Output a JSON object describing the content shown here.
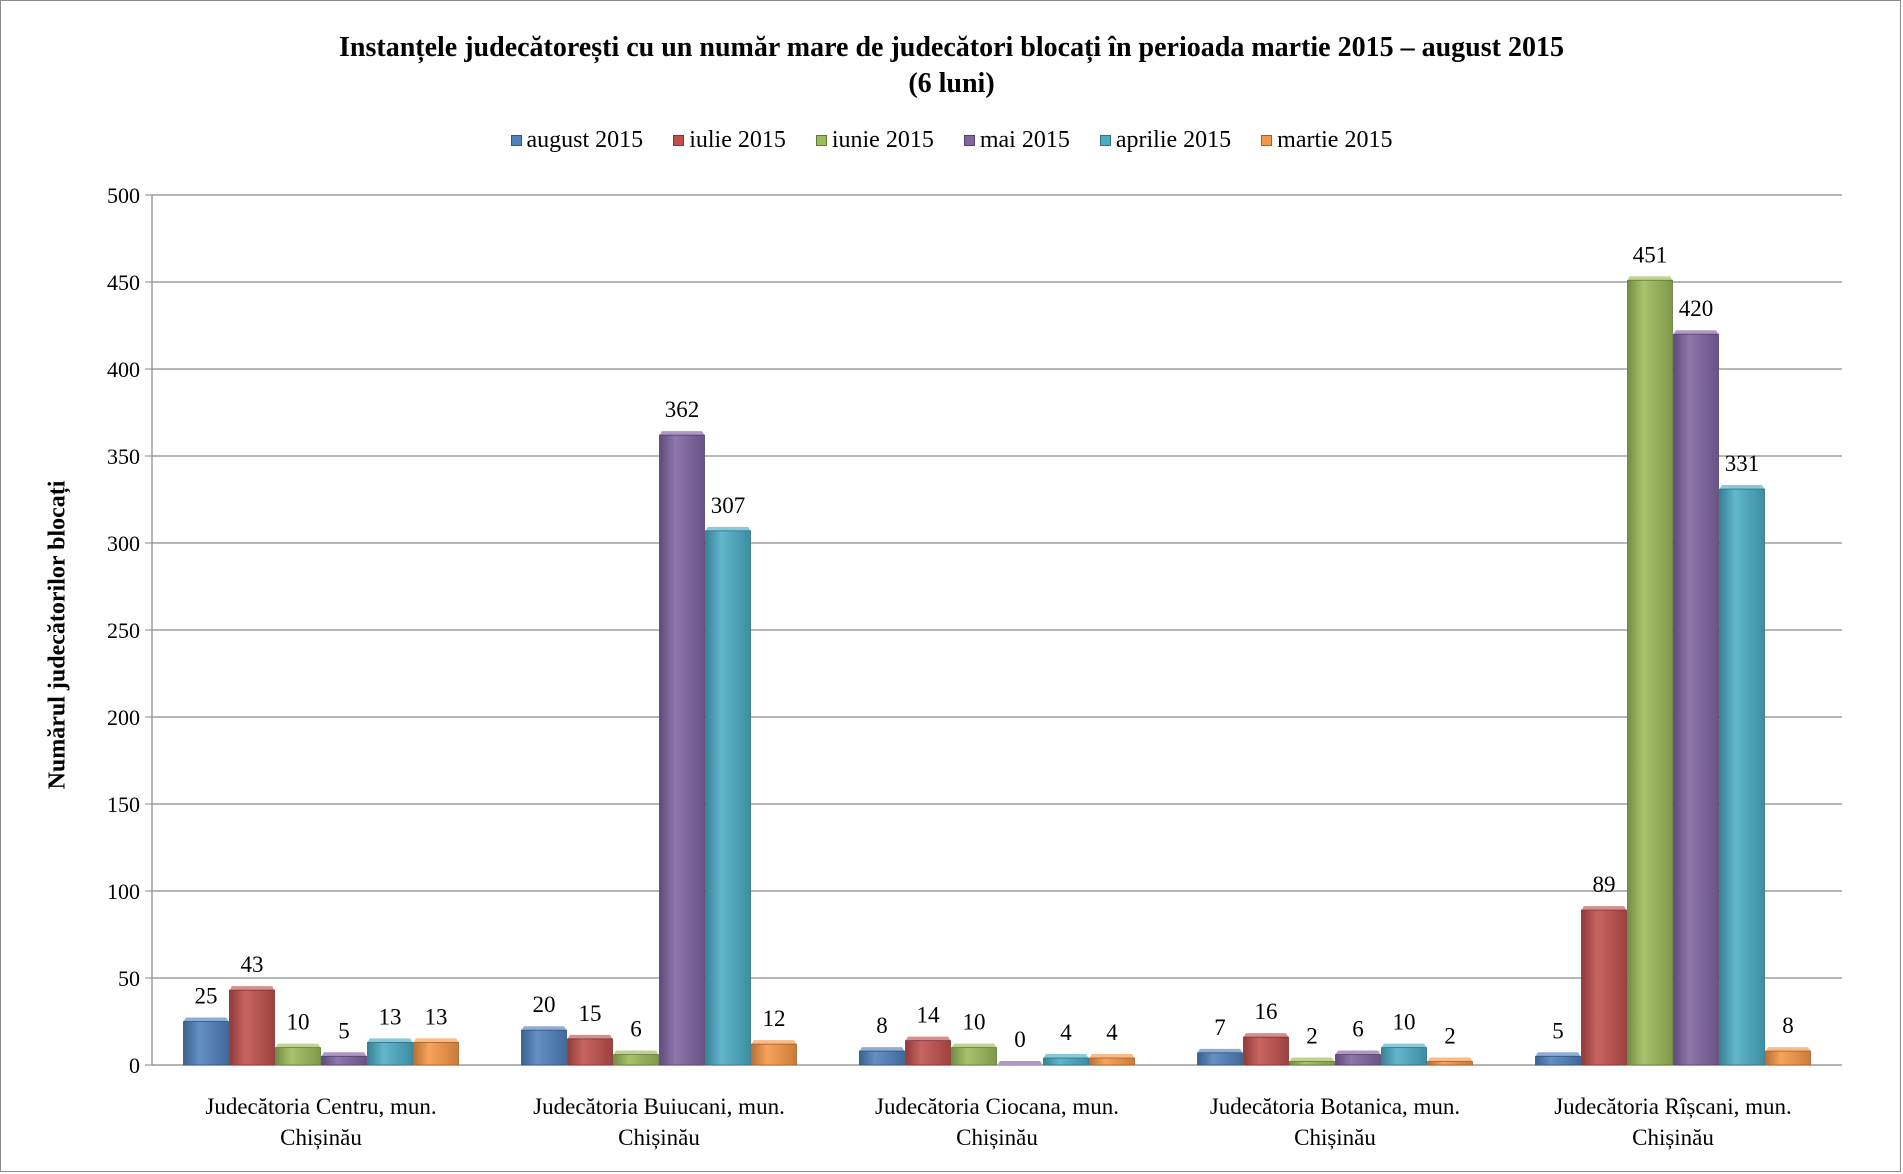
{
  "chart_data": {
    "type": "bar",
    "title_line1": "Instanțele judecătorești cu un număr mare de judecători blocați în perioada martie 2015 – august 2015",
    "title_line2": "(6 luni)",
    "xlabel": "",
    "ylabel": "Numărul judecătorilor blocați",
    "ylim": [
      0,
      500
    ],
    "yticks": [
      0,
      50,
      100,
      150,
      200,
      250,
      300,
      350,
      400,
      450,
      500
    ],
    "grid": true,
    "legend_position": "top",
    "categories": [
      [
        "Judecătoria Centru, mun.",
        "Chișinău"
      ],
      [
        "Judecătoria Buiucani, mun.",
        "Chișinău"
      ],
      [
        "Judecătoria Ciocana, mun.",
        "Chișinău"
      ],
      [
        "Judecătoria Botanica, mun.",
        "Chișinău"
      ],
      [
        "Judecătoria Rîșcani, mun.",
        "Chișinău"
      ]
    ],
    "series": [
      {
        "name": "august 2015",
        "color": "#4f81bd",
        "values": [
          25,
          20,
          8,
          7,
          5
        ]
      },
      {
        "name": "iulie 2015",
        "color": "#c0504d",
        "values": [
          43,
          15,
          14,
          16,
          89
        ]
      },
      {
        "name": "iunie 2015",
        "color": "#9bbb59",
        "values": [
          10,
          6,
          10,
          2,
          451
        ]
      },
      {
        "name": "mai 2015",
        "color": "#8064a2",
        "values": [
          5,
          362,
          0,
          6,
          420
        ]
      },
      {
        "name": "aprilie 2015",
        "color": "#4bacc6",
        "values": [
          13,
          307,
          4,
          10,
          331
        ]
      },
      {
        "name": "martie 2015",
        "color": "#f79646",
        "values": [
          13,
          12,
          4,
          2,
          8
        ]
      }
    ]
  }
}
